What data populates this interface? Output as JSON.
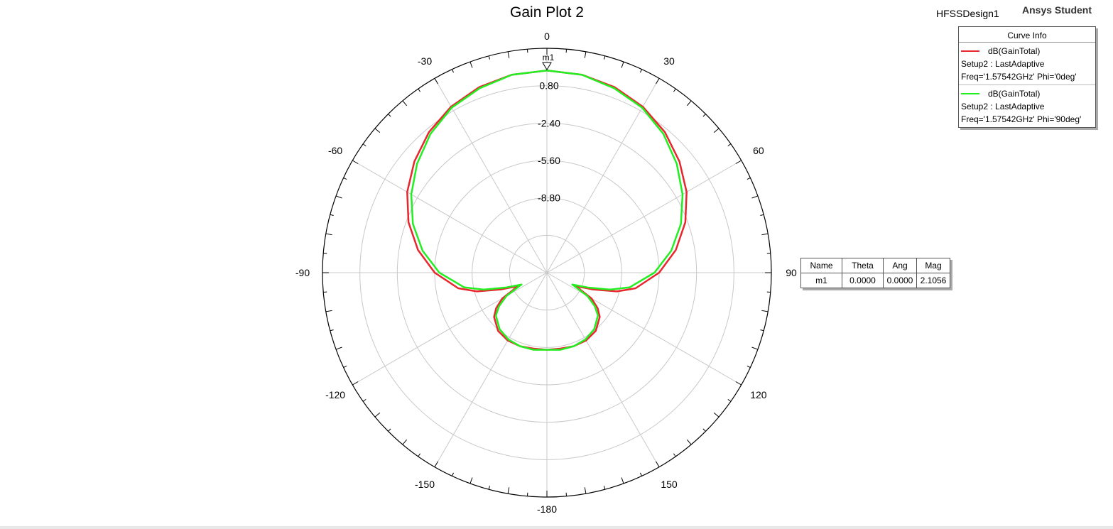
{
  "header": {
    "title": "Gain Plot 2",
    "design_name": "HFSSDesign1",
    "brand": "Ansys Student"
  },
  "legend": {
    "title": "Curve Info",
    "entries": [
      {
        "name": "dB(GainTotal)",
        "line1": "Setup2 : LastAdaptive",
        "line2": "Freq='1.57542GHz' Phi='0deg'",
        "color": "#e8262e"
      },
      {
        "name": "dB(GainTotal)",
        "line1": "Setup2 : LastAdaptive",
        "line2": "Freq='1.57542GHz' Phi='90deg'",
        "color": "#22ee22"
      }
    ]
  },
  "marker_table": {
    "headers": [
      "Name",
      "Theta",
      "Ang",
      "Mag"
    ],
    "rows": [
      [
        "m1",
        "0.0000",
        "0.0000",
        "2.1056"
      ]
    ]
  },
  "chart_data": {
    "type": "line",
    "coordinate_system": "polar",
    "title": "Gain Plot 2",
    "angle_unit": "deg",
    "angle_zero": "top",
    "angle_direction": "clockwise",
    "angle_ticks": [
      0,
      30,
      60,
      90,
      120,
      150,
      -180,
      -150,
      -120,
      -90,
      -60,
      -30
    ],
    "radial_range": [
      -15.2,
      4.0
    ],
    "radial_ticks": [
      0.8,
      -2.4,
      -5.6,
      -8.8
    ],
    "radial_tick_labels": [
      "0.80",
      "-2.40",
      "-5.60",
      "-8.80"
    ],
    "grid": true,
    "marker": {
      "name": "m1",
      "theta": 0,
      "mag": 2.1056
    },
    "series": [
      {
        "name": "dB(GainTotal) Phi='0deg'",
        "color": "#e8262e",
        "theta": [
          0,
          10,
          20,
          30,
          40,
          50,
          60,
          70,
          80,
          90,
          100,
          105,
          110,
          115,
          120,
          125,
          130,
          140,
          150,
          160,
          170,
          180,
          190,
          200,
          210,
          220,
          230,
          235,
          240,
          245,
          250,
          255,
          260,
          270,
          280,
          290,
          300,
          310,
          320,
          330,
          340,
          350,
          360
        ],
        "values": [
          2.1,
          2.0,
          1.7,
          1.2,
          0.5,
          -0.4,
          -1.4,
          -2.6,
          -4.0,
          -5.6,
          -7.5,
          -9.0,
          -11.0,
          -12.5,
          -10.8,
          -9.9,
          -9.3,
          -8.7,
          -8.5,
          -8.5,
          -8.6,
          -8.6,
          -8.6,
          -8.5,
          -8.5,
          -8.7,
          -9.3,
          -9.9,
          -10.8,
          -12.5,
          -11.0,
          -9.0,
          -7.5,
          -5.6,
          -4.0,
          -2.6,
          -1.4,
          -0.4,
          0.5,
          1.2,
          1.7,
          2.0,
          2.1
        ]
      },
      {
        "name": "dB(GainTotal) Phi='90deg'",
        "color": "#22ee22",
        "theta": [
          0,
          10,
          20,
          30,
          40,
          50,
          60,
          70,
          80,
          90,
          100,
          105,
          110,
          115,
          120,
          125,
          130,
          140,
          150,
          160,
          170,
          180,
          190,
          200,
          210,
          220,
          230,
          235,
          240,
          245,
          250,
          255,
          260,
          270,
          280,
          290,
          300,
          310,
          320,
          330,
          340,
          350,
          360
        ],
        "values": [
          2.1,
          2.0,
          1.6,
          1.1,
          0.3,
          -0.7,
          -1.8,
          -3.0,
          -4.4,
          -6.0,
          -8.0,
          -9.6,
          -11.5,
          -12.8,
          -11.2,
          -10.2,
          -9.5,
          -8.9,
          -8.6,
          -8.5,
          -8.5,
          -8.6,
          -8.5,
          -8.5,
          -8.6,
          -8.9,
          -9.5,
          -10.2,
          -11.2,
          -12.8,
          -11.5,
          -9.6,
          -8.0,
          -6.0,
          -4.4,
          -3.0,
          -1.8,
          -0.7,
          0.3,
          1.1,
          1.6,
          2.0,
          2.1
        ]
      }
    ]
  }
}
